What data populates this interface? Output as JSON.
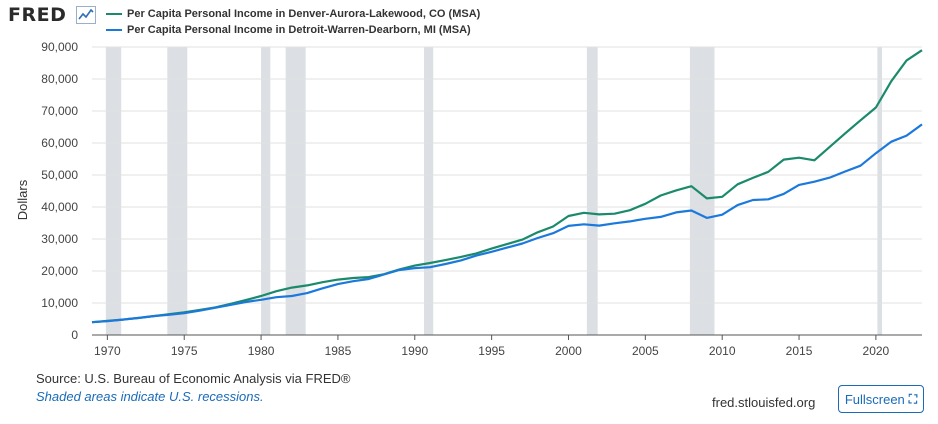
{
  "header": {
    "logo_text": "FRED",
    "logo_icon": "line-chart-icon"
  },
  "footer": {
    "source": "Source: U.S. Bureau of Economic Analysis via FRED®",
    "recession_note": "Shaded areas indicate U.S. recessions.",
    "site": "fred.stlouisfed.org",
    "fullscreen_label": "Fullscreen",
    "fullscreen_icon": "expand-icon"
  },
  "colors": {
    "denver": "#1b8a6b",
    "detroit": "#1c79dc",
    "recession": "#dcdfe3",
    "grid": "#e2e2e2"
  },
  "chart_data": {
    "type": "line",
    "title": "",
    "xlabel": "",
    "ylabel": "Dollars",
    "xlim": [
      1969,
      2023
    ],
    "ylim": [
      0,
      90000
    ],
    "yticks": [
      0,
      10000,
      20000,
      30000,
      40000,
      50000,
      60000,
      70000,
      80000,
      90000
    ],
    "ytick_labels": [
      "0",
      "10,000",
      "20,000",
      "30,000",
      "40,000",
      "50,000",
      "60,000",
      "70,000",
      "80,000",
      "90,000"
    ],
    "xticks": [
      1970,
      1975,
      1980,
      1985,
      1990,
      1995,
      2000,
      2005,
      2010,
      2015,
      2020
    ],
    "xtick_labels": [
      "1970",
      "1975",
      "1980",
      "1985",
      "1990",
      "1995",
      "2000",
      "2005",
      "2010",
      "2015",
      "2020"
    ],
    "grid": true,
    "legend_position": "top-left",
    "recessions": [
      [
        1969.9,
        1970.9
      ],
      [
        1973.9,
        1975.2
      ],
      [
        1980.0,
        1980.6
      ],
      [
        1981.6,
        1982.9
      ],
      [
        1990.6,
        1991.2
      ],
      [
        2001.2,
        2001.9
      ],
      [
        2007.9,
        2009.5
      ],
      [
        2020.1,
        2020.4
      ]
    ],
    "x": [
      1969,
      1970,
      1971,
      1972,
      1973,
      1974,
      1975,
      1976,
      1977,
      1978,
      1979,
      1980,
      1981,
      1982,
      1983,
      1984,
      1985,
      1986,
      1987,
      1988,
      1989,
      1990,
      1991,
      1992,
      1993,
      1994,
      1995,
      1996,
      1997,
      1998,
      1999,
      2000,
      2001,
      2002,
      2003,
      2004,
      2005,
      2006,
      2007,
      2008,
      2009,
      2010,
      2011,
      2012,
      2013,
      2014,
      2015,
      2016,
      2017,
      2018,
      2019,
      2020,
      2021,
      2022,
      2023
    ],
    "series": [
      {
        "name": "Per Capita Personal Income in Denver-Aurora-Lakewood, CO (MSA)",
        "color": "#1b8a6b",
        "values": [
          4000,
          4400,
          4800,
          5300,
          5900,
          6500,
          7100,
          7800,
          8600,
          9700,
          10900,
          12200,
          13700,
          14800,
          15500,
          16500,
          17300,
          17800,
          18100,
          19000,
          20500,
          21700,
          22500,
          23400,
          24400,
          25500,
          27000,
          28400,
          29800,
          32100,
          33900,
          37200,
          38200,
          37700,
          37900,
          39000,
          41000,
          43600,
          45200,
          46500,
          42700,
          43200,
          47100,
          49100,
          51000,
          54800,
          55400,
          54600,
          58800,
          63000,
          67100,
          71100,
          79300,
          85800,
          89000
        ]
      },
      {
        "name": "Per Capita Personal Income in Detroit-Warren-Dearborn, MI (MSA)",
        "color": "#1c79dc",
        "values": [
          4000,
          4300,
          4800,
          5300,
          5900,
          6300,
          6800,
          7600,
          8500,
          9400,
          10300,
          11000,
          11800,
          12200,
          13100,
          14600,
          15900,
          16800,
          17500,
          18900,
          20300,
          20900,
          21200,
          22200,
          23300,
          24800,
          26000,
          27300,
          28600,
          30300,
          31800,
          34100,
          34600,
          34200,
          34900,
          35500,
          36300,
          36900,
          38300,
          38900,
          36600,
          37600,
          40600,
          42200,
          42400,
          44100,
          46900,
          47900,
          49200,
          51100,
          52900,
          56800,
          60400,
          62300,
          65800
        ]
      }
    ]
  }
}
